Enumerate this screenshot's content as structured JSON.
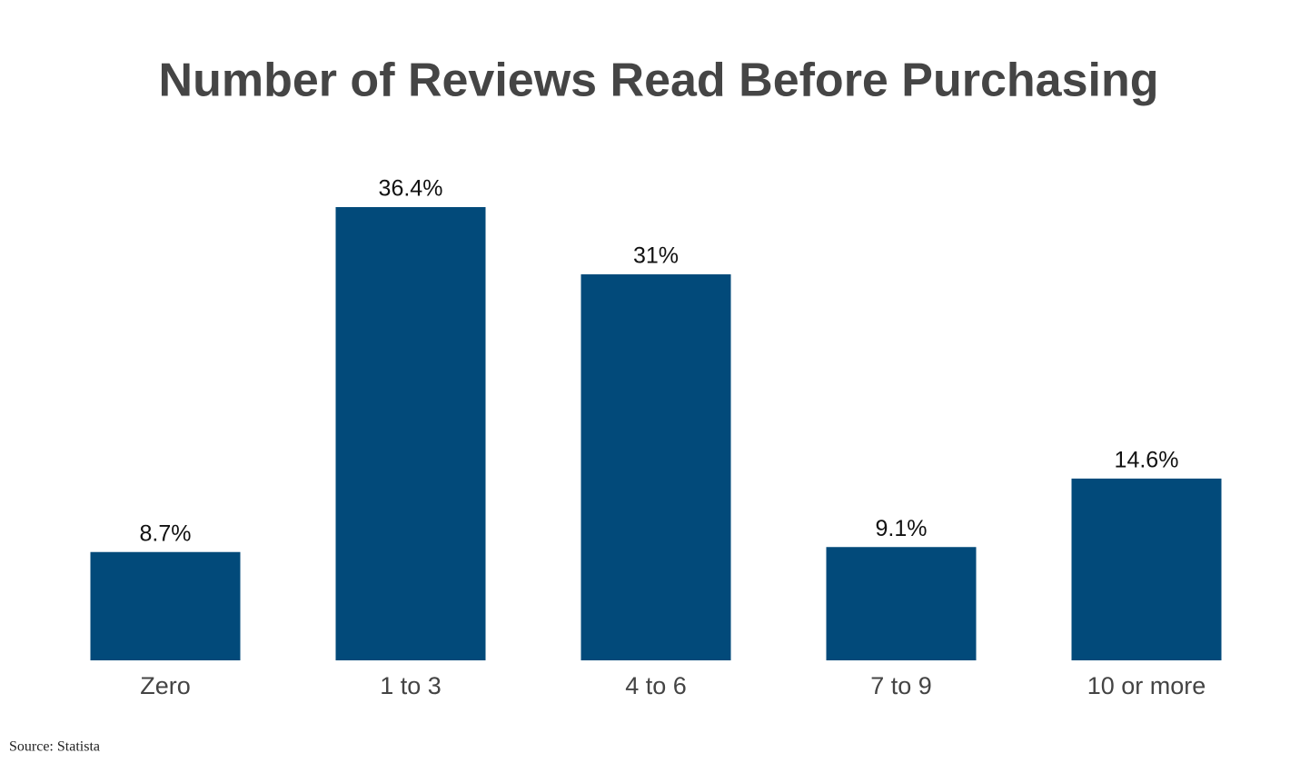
{
  "chart_data": {
    "type": "bar",
    "title": "Number of Reviews Read Before Purchasing",
    "categories": [
      "Zero",
      "1 to 3",
      "4 to 6",
      "7 to 9",
      "10 or more"
    ],
    "values": [
      8.7,
      36.4,
      31,
      9.1,
      14.6
    ],
    "value_labels": [
      "8.7%",
      "36.4%",
      "31%",
      "9.1%",
      "14.6%"
    ],
    "color": "#024a7a",
    "source": "Source: Statista"
  }
}
